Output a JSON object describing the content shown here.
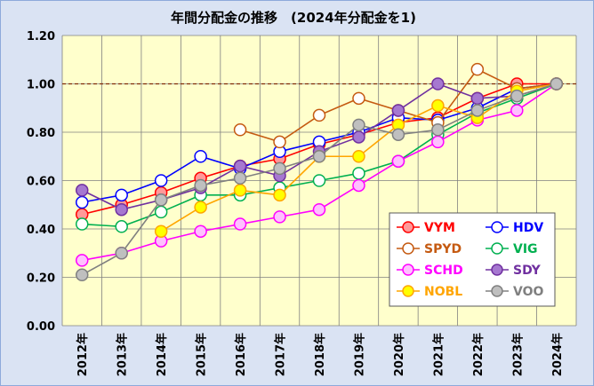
{
  "chart_data": {
    "type": "line",
    "title": "年間分配金の推移　(2024年分配金を1)",
    "xlabel": "",
    "ylabel": "",
    "categories": [
      "2012年",
      "2013年",
      "2014年",
      "2015年",
      "2016年",
      "2017年",
      "2018年",
      "2019年",
      "2020年",
      "2021年",
      "2022年",
      "2023年",
      "2024年"
    ],
    "ylim": [
      0,
      1.2
    ],
    "yticks": [
      "0.00",
      "0.20",
      "0.40",
      "0.60",
      "0.80",
      "1.00",
      "1.20"
    ],
    "ytick_values": [
      0,
      0.2,
      0.4,
      0.6,
      0.8,
      1.0,
      1.2
    ],
    "grid": true,
    "reference_line": 1.0,
    "legend_position": "bottom-right",
    "series": [
      {
        "name": "VYM",
        "color": "#ff0000",
        "fill": "#ff9999",
        "values": [
          0.46,
          0.5,
          0.55,
          0.61,
          0.66,
          0.69,
          0.75,
          0.79,
          0.84,
          0.86,
          0.94,
          1.0,
          1.0
        ]
      },
      {
        "name": "HDV",
        "color": "#0000ff",
        "fill": "#ffffff",
        "values": [
          0.51,
          0.54,
          0.6,
          0.7,
          0.65,
          0.72,
          0.76,
          0.8,
          0.86,
          0.85,
          0.9,
          0.98,
          1.0
        ]
      },
      {
        "name": "SPYD",
        "color": "#c55a11",
        "fill": "#ffffff",
        "values": [
          null,
          null,
          null,
          null,
          0.81,
          0.76,
          0.87,
          0.94,
          0.89,
          0.84,
          1.06,
          0.98,
          1.0
        ]
      },
      {
        "name": "VIG",
        "color": "#00b050",
        "fill": "#ffffff",
        "values": [
          0.42,
          0.41,
          0.47,
          0.54,
          0.54,
          0.57,
          0.6,
          0.63,
          0.68,
          0.79,
          0.88,
          0.94,
          1.0
        ]
      },
      {
        "name": "SCHD",
        "color": "#ff00ff",
        "fill": "#ffc0ff",
        "values": [
          0.27,
          0.3,
          0.35,
          0.39,
          0.42,
          0.45,
          0.48,
          0.58,
          0.68,
          0.76,
          0.85,
          0.89,
          1.0
        ]
      },
      {
        "name": "SDY",
        "color": "#7030a0",
        "fill": "#a678d0",
        "values": [
          0.56,
          0.48,
          0.52,
          0.57,
          0.66,
          0.62,
          0.72,
          0.78,
          0.89,
          1.0,
          0.94,
          0.95,
          1.0
        ]
      },
      {
        "name": "NOBL",
        "color": "#ffa500",
        "fill": "#ffff00",
        "values": [
          null,
          null,
          0.39,
          0.49,
          0.56,
          0.54,
          0.7,
          0.7,
          0.83,
          0.91,
          0.86,
          0.97,
          1.0
        ]
      },
      {
        "name": "VOO",
        "color": "#808080",
        "fill": "#bfbfbf",
        "values": [
          0.21,
          0.3,
          0.52,
          0.58,
          0.61,
          0.65,
          0.7,
          0.83,
          0.79,
          0.81,
          0.89,
          0.95,
          1.0
        ]
      }
    ]
  }
}
